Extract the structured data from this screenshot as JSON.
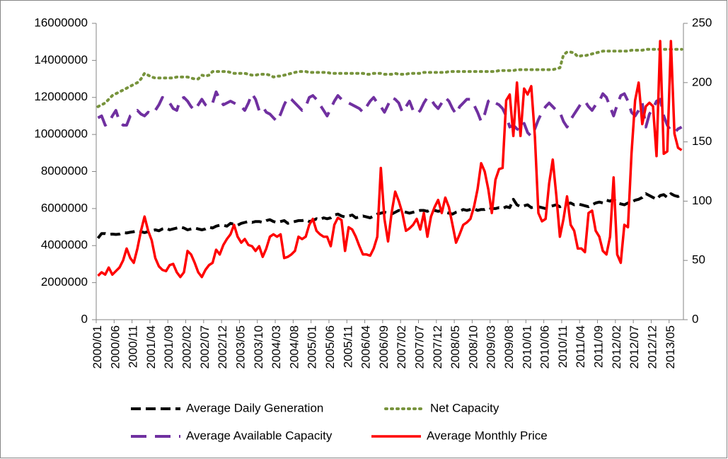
{
  "chart_data": {
    "type": "line",
    "categories": [
      "2000/01",
      null,
      null,
      null,
      null,
      "2000/06",
      null,
      null,
      null,
      null,
      "2000/11",
      null,
      null,
      null,
      null,
      "2001/04",
      null,
      null,
      null,
      null,
      "2001/09",
      null,
      null,
      null,
      null,
      "2002/02",
      null,
      null,
      null,
      null,
      "2002/07",
      null,
      null,
      null,
      null,
      "2002/12",
      null,
      null,
      null,
      null,
      "2003/05",
      null,
      null,
      null,
      null,
      "2003/10",
      null,
      null,
      null,
      null,
      "2004/03",
      null,
      null,
      null,
      null,
      "2004/08",
      null,
      null,
      null,
      null,
      "2005/01",
      null,
      null,
      null,
      null,
      "2005/06",
      null,
      null,
      null,
      null,
      "2005/11",
      null,
      null,
      null,
      null,
      "2006/04",
      null,
      null,
      null,
      null,
      "2006/09",
      null,
      null,
      null,
      null,
      "2007/02",
      null,
      null,
      null,
      null,
      "2007/07",
      null,
      null,
      null,
      null,
      "2007/12",
      null,
      null,
      null,
      null,
      "2008/05",
      null,
      null,
      null,
      null,
      "2008/10",
      null,
      null,
      null,
      null,
      "2009/03",
      null,
      null,
      null,
      null,
      "2009/08",
      null,
      null,
      null,
      null,
      "2010/01",
      null,
      null,
      null,
      null,
      "2010/06",
      null,
      null,
      null,
      null,
      "2010/11",
      null,
      null,
      null,
      null,
      "2011/04",
      null,
      null,
      null,
      null,
      "2011/09",
      null,
      null,
      null,
      null,
      "2012/02",
      null,
      null,
      null,
      null,
      "2012/07",
      null,
      null,
      null,
      null,
      "2012/12",
      null,
      null,
      null,
      null,
      "2013/05",
      null,
      null,
      null
    ],
    "ylim": [
      0,
      16000000
    ],
    "yticks": [
      0,
      2000000,
      4000000,
      6000000,
      8000000,
      10000000,
      12000000,
      14000000,
      16000000
    ],
    "y2lim": [
      0,
      250
    ],
    "y2ticks": [
      0,
      50,
      100,
      150,
      200,
      250
    ],
    "legend": "bottom",
    "series": [
      {
        "name": "Average Daily Generation",
        "color": "#000000",
        "style": "dashed",
        "values": [
          4400000,
          4650000,
          4650000,
          4600000,
          4620000,
          4600000,
          4620000,
          4700000,
          4680000,
          4720000,
          4750000,
          4800000,
          4750000,
          4700000,
          4750000,
          4800000,
          4850000,
          4800000,
          4900000,
          4950000,
          4850000,
          4900000,
          4950000,
          5000000,
          4950000,
          4850000,
          4900000,
          4950000,
          4900000,
          4850000,
          4900000,
          5000000,
          4950000,
          5050000,
          5100000,
          5100000,
          5050000,
          5200000,
          5150000,
          5100000,
          5200000,
          5250000,
          5300000,
          5250000,
          5300000,
          5300000,
          5250000,
          5350000,
          5400000,
          5300000,
          5250000,
          5300000,
          5350000,
          5200000,
          5250000,
          5300000,
          5350000,
          5350000,
          5400000,
          5300000,
          5350000,
          5450000,
          5400000,
          5500000,
          5450000,
          5500000,
          5650000,
          5700000,
          5600000,
          5550000,
          5600000,
          5650000,
          5500000,
          5550000,
          5600000,
          5550000,
          5500000,
          5600000,
          5700000,
          5750000,
          5800000,
          5750000,
          5700000,
          5800000,
          5900000,
          5850000,
          5800000,
          5750000,
          5800000,
          5850000,
          5900000,
          5900000,
          5850000,
          5950000,
          5900000,
          5850000,
          5900000,
          5800000,
          5750000,
          5700000,
          5800000,
          5850000,
          5950000,
          5900000,
          5950000,
          6000000,
          5900000,
          5950000,
          5950000,
          6050000,
          6000000,
          6000000,
          6050000,
          6000000,
          6100000,
          6050000,
          6500000,
          6200000,
          6100000,
          6150000,
          6200000,
          6050000,
          6100000,
          6100000,
          6050000,
          6000000,
          6100000,
          6150000,
          6200000,
          6100000,
          6200000,
          6250000,
          6300000,
          6200000,
          6250000,
          6200000,
          6150000,
          6100000,
          6200000,
          6300000,
          6350000,
          6300000,
          6450000,
          6400000,
          6500000,
          6300000,
          6250000,
          6200000,
          6300000,
          6350000,
          6450000,
          6500000,
          6600000,
          6800000,
          6700000,
          6600000,
          6500000,
          6700000,
          6750000,
          6600000,
          6800000,
          6700000,
          6650000,
          6750000
        ]
      },
      {
        "name": "Net Capacity",
        "color": "#77933c",
        "style": "dotted",
        "values": [
          11500000,
          11600000,
          11700000,
          11900000,
          12100000,
          12200000,
          12300000,
          12400000,
          12500000,
          12600000,
          12700000,
          12800000,
          13000000,
          13300000,
          13200000,
          13100000,
          13050000,
          13050000,
          13050000,
          13050000,
          13050000,
          13050000,
          13100000,
          13100000,
          13100000,
          13100000,
          13050000,
          13000000,
          13000000,
          13200000,
          13150000,
          13200000,
          13400000,
          13400000,
          13400000,
          13400000,
          13400000,
          13350000,
          13300000,
          13300000,
          13300000,
          13300000,
          13250000,
          13200000,
          13200000,
          13250000,
          13250000,
          13250000,
          13200000,
          13100000,
          13150000,
          13150000,
          13200000,
          13250000,
          13300000,
          13350000,
          13400000,
          13400000,
          13400000,
          13350000,
          13350000,
          13350000,
          13350000,
          13350000,
          13350000,
          13300000,
          13300000,
          13300000,
          13300000,
          13300000,
          13300000,
          13300000,
          13300000,
          13300000,
          13300000,
          13250000,
          13250000,
          13300000,
          13300000,
          13300000,
          13250000,
          13250000,
          13250000,
          13300000,
          13250000,
          13250000,
          13250000,
          13300000,
          13300000,
          13300000,
          13300000,
          13350000,
          13350000,
          13350000,
          13350000,
          13350000,
          13350000,
          13350000,
          13400000,
          13400000,
          13400000,
          13400000,
          13400000,
          13400000,
          13400000,
          13400000,
          13400000,
          13400000,
          13400000,
          13400000,
          13400000,
          13400000,
          13450000,
          13450000,
          13450000,
          13450000,
          13450000,
          13500000,
          13500000,
          13500000,
          13500000,
          13500000,
          13500000,
          13500000,
          13500000,
          13500000,
          13500000,
          13500000,
          13550000,
          13600000,
          14300000,
          14450000,
          14450000,
          14400000,
          14200000,
          14250000,
          14250000,
          14300000,
          14350000,
          14400000,
          14450000,
          14500000,
          14500000,
          14500000,
          14500000,
          14500000,
          14500000,
          14500000,
          14500000,
          14550000,
          14550000,
          14550000,
          14550000,
          14600000,
          14600000,
          14600000,
          14600000,
          14600000,
          14600000,
          14600000,
          14600000,
          14600000,
          14600000,
          14600000
        ]
      },
      {
        "name": "Average Available Capacity",
        "color": "#7030a0",
        "style": "longdash",
        "values": [
          10900000,
          11000000,
          10500000,
          10600000,
          11000000,
          11300000,
          10700000,
          10500000,
          10500000,
          11000000,
          11100000,
          11300000,
          11100000,
          11000000,
          11200000,
          11100000,
          11300000,
          11600000,
          12000000,
          11900000,
          11700000,
          11400000,
          11300000,
          11900000,
          12000000,
          11800000,
          11500000,
          11300000,
          11600000,
          11900000,
          11600000,
          11500000,
          11700000,
          12300000,
          11900000,
          11600000,
          11700000,
          11800000,
          11700000,
          11600000,
          11500000,
          11300000,
          11700000,
          12200000,
          11900000,
          11300000,
          11500000,
          11200000,
          11100000,
          10900000,
          10700000,
          11100000,
          11600000,
          12000000,
          11900000,
          11700000,
          11500000,
          11300000,
          11500000,
          12000000,
          12100000,
          11900000,
          11600000,
          11300000,
          11000000,
          11400000,
          11800000,
          12100000,
          11900000,
          11800000,
          11700000,
          11600000,
          11500000,
          11400000,
          11200000,
          11500000,
          11800000,
          12000000,
          11700000,
          11500000,
          11200000,
          11600000,
          12000000,
          11900000,
          11700000,
          11200000,
          11500000,
          11800000,
          11300000,
          11100000,
          11300000,
          11700000,
          12000000,
          11900000,
          11600000,
          11400000,
          11700000,
          12000000,
          11800000,
          11400000,
          11100000,
          11500000,
          11700000,
          11900000,
          11900000,
          11600000,
          11200000,
          10700000,
          11100000,
          11800000,
          11900000,
          11700000,
          11600000,
          11400000,
          11000000,
          10400000,
          10500000,
          10300000,
          10200000,
          10600000,
          10100000,
          9900000,
          10300000,
          10800000,
          11200000,
          11500000,
          11700000,
          11500000,
          11300000,
          11200000,
          10700000,
          10400000,
          10800000,
          11100000,
          11400000,
          11700000,
          11800000,
          11500000,
          11300000,
          11600000,
          11800000,
          12200000,
          12000000,
          11500000,
          11000000,
          11600000,
          12100000,
          12200000,
          11800000,
          11200000,
          11000000,
          11300000,
          11700000,
          10400000,
          11100000,
          11400000,
          11800000,
          11900000,
          11000000,
          10500000,
          10200000,
          10100000,
          10300000,
          10400000
        ]
      },
      {
        "name": "Average Monthly Price",
        "color": "#ff0000",
        "style": "solid",
        "axis": "y2",
        "values": [
          37,
          40,
          38,
          44,
          38,
          41,
          44,
          50,
          60,
          52,
          48,
          60,
          75,
          87,
          75,
          67,
          52,
          45,
          42,
          41,
          46,
          47,
          40,
          36,
          40,
          58,
          55,
          48,
          40,
          36,
          42,
          46,
          48,
          59,
          55,
          63,
          68,
          72,
          80,
          70,
          65,
          68,
          63,
          62,
          58,
          62,
          53,
          60,
          70,
          72,
          70,
          72,
          52,
          53,
          55,
          58,
          70,
          68,
          70,
          80,
          85,
          75,
          72,
          70,
          70,
          62,
          80,
          86,
          84,
          58,
          78,
          76,
          70,
          62,
          55,
          55,
          54,
          60,
          70,
          128,
          85,
          66,
          90,
          108,
          100,
          90,
          75,
          77,
          80,
          85,
          76,
          90,
          70,
          87,
          95,
          101,
          90,
          103,
          95,
          80,
          65,
          72,
          80,
          82,
          85,
          95,
          110,
          132,
          125,
          110,
          90,
          118,
          127,
          128,
          185,
          190,
          155,
          200,
          155,
          195,
          190,
          197,
          155,
          90,
          83,
          85,
          115,
          135,
          105,
          70,
          85,
          104,
          80,
          75,
          60,
          60,
          57,
          90,
          92,
          75,
          70,
          58,
          55,
          70,
          120,
          55,
          48,
          80,
          78,
          140,
          185,
          200,
          165,
          180,
          183,
          180,
          138,
          235,
          140,
          142,
          235,
          157,
          145,
          143
        ]
      }
    ]
  }
}
